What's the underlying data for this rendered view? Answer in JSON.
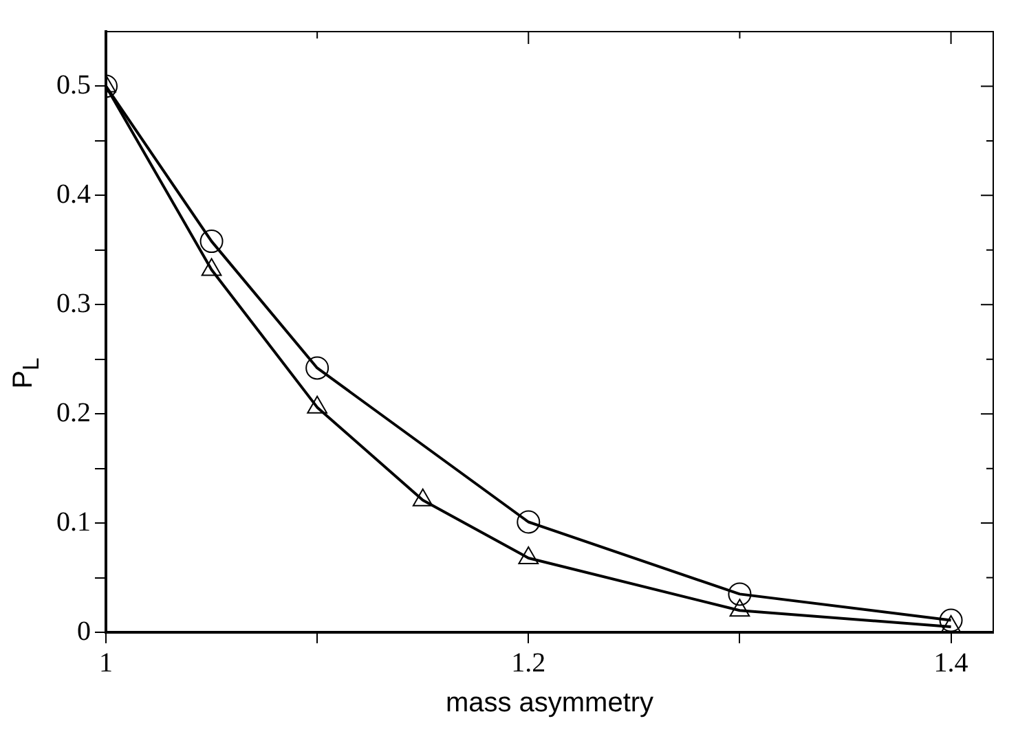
{
  "chart_data": {
    "type": "line",
    "xlabel": "mass asymmetry",
    "ylabel": "P$_{L}$",
    "xlim": [
      1,
      1.42
    ],
    "ylim": [
      0,
      0.55
    ],
    "xticks": [
      {
        "value": 1,
        "label": "1"
      },
      {
        "value": 1.1,
        "label": null
      },
      {
        "value": 1.2,
        "label": "1.2"
      },
      {
        "value": 1.3,
        "label": null
      },
      {
        "value": 1.4,
        "label": "1.4"
      }
    ],
    "yticks": [
      0,
      {
        "value": 0.05,
        "label": null
      },
      0.1,
      {
        "value": 0.15,
        "label": null
      },
      0.2,
      {
        "value": 0.25,
        "label": null
      },
      0.3,
      {
        "value": 0.35,
        "label": null
      },
      0.4,
      {
        "value": 0.45,
        "label": null
      },
      0.5
    ],
    "grid": false,
    "legend": false,
    "series": [
      {
        "color": "#000000",
        "marker": "triangle",
        "x": [
          1,
          1.05,
          1.1,
          1.15,
          1.2,
          1.3,
          1.4
        ],
        "values": [
          0.5,
          0.332,
          0.206,
          0.121,
          0.068,
          0.02,
          0.005
        ]
      },
      {
        "color": "#000000",
        "marker": "circle",
        "x": [
          1,
          1.05,
          1.1,
          1.2,
          1.3,
          1.4
        ],
        "values": [
          0.5,
          0.358,
          0.242,
          0.101,
          0.035,
          0.011
        ]
      }
    ]
  }
}
